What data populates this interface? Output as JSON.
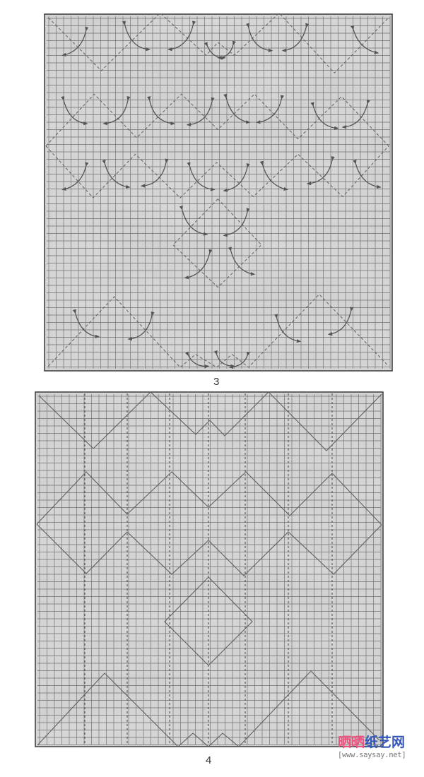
{
  "diagrams": [
    {
      "step_label": "3",
      "line_style": "valley-dashed",
      "has_arrows": true
    },
    {
      "step_label": "4",
      "line_style": "crease-solid",
      "has_arrows": false
    }
  ],
  "colors": {
    "paper": "#d6d6d6",
    "grid": "#6f6f6f",
    "crease": "#606060",
    "watermark_pink": "#f0507e",
    "watermark_blue": "#3558b8"
  },
  "watermark": {
    "part1": "晒晒",
    "part2": "纸艺网",
    "url": "[www.saysay.net]"
  }
}
